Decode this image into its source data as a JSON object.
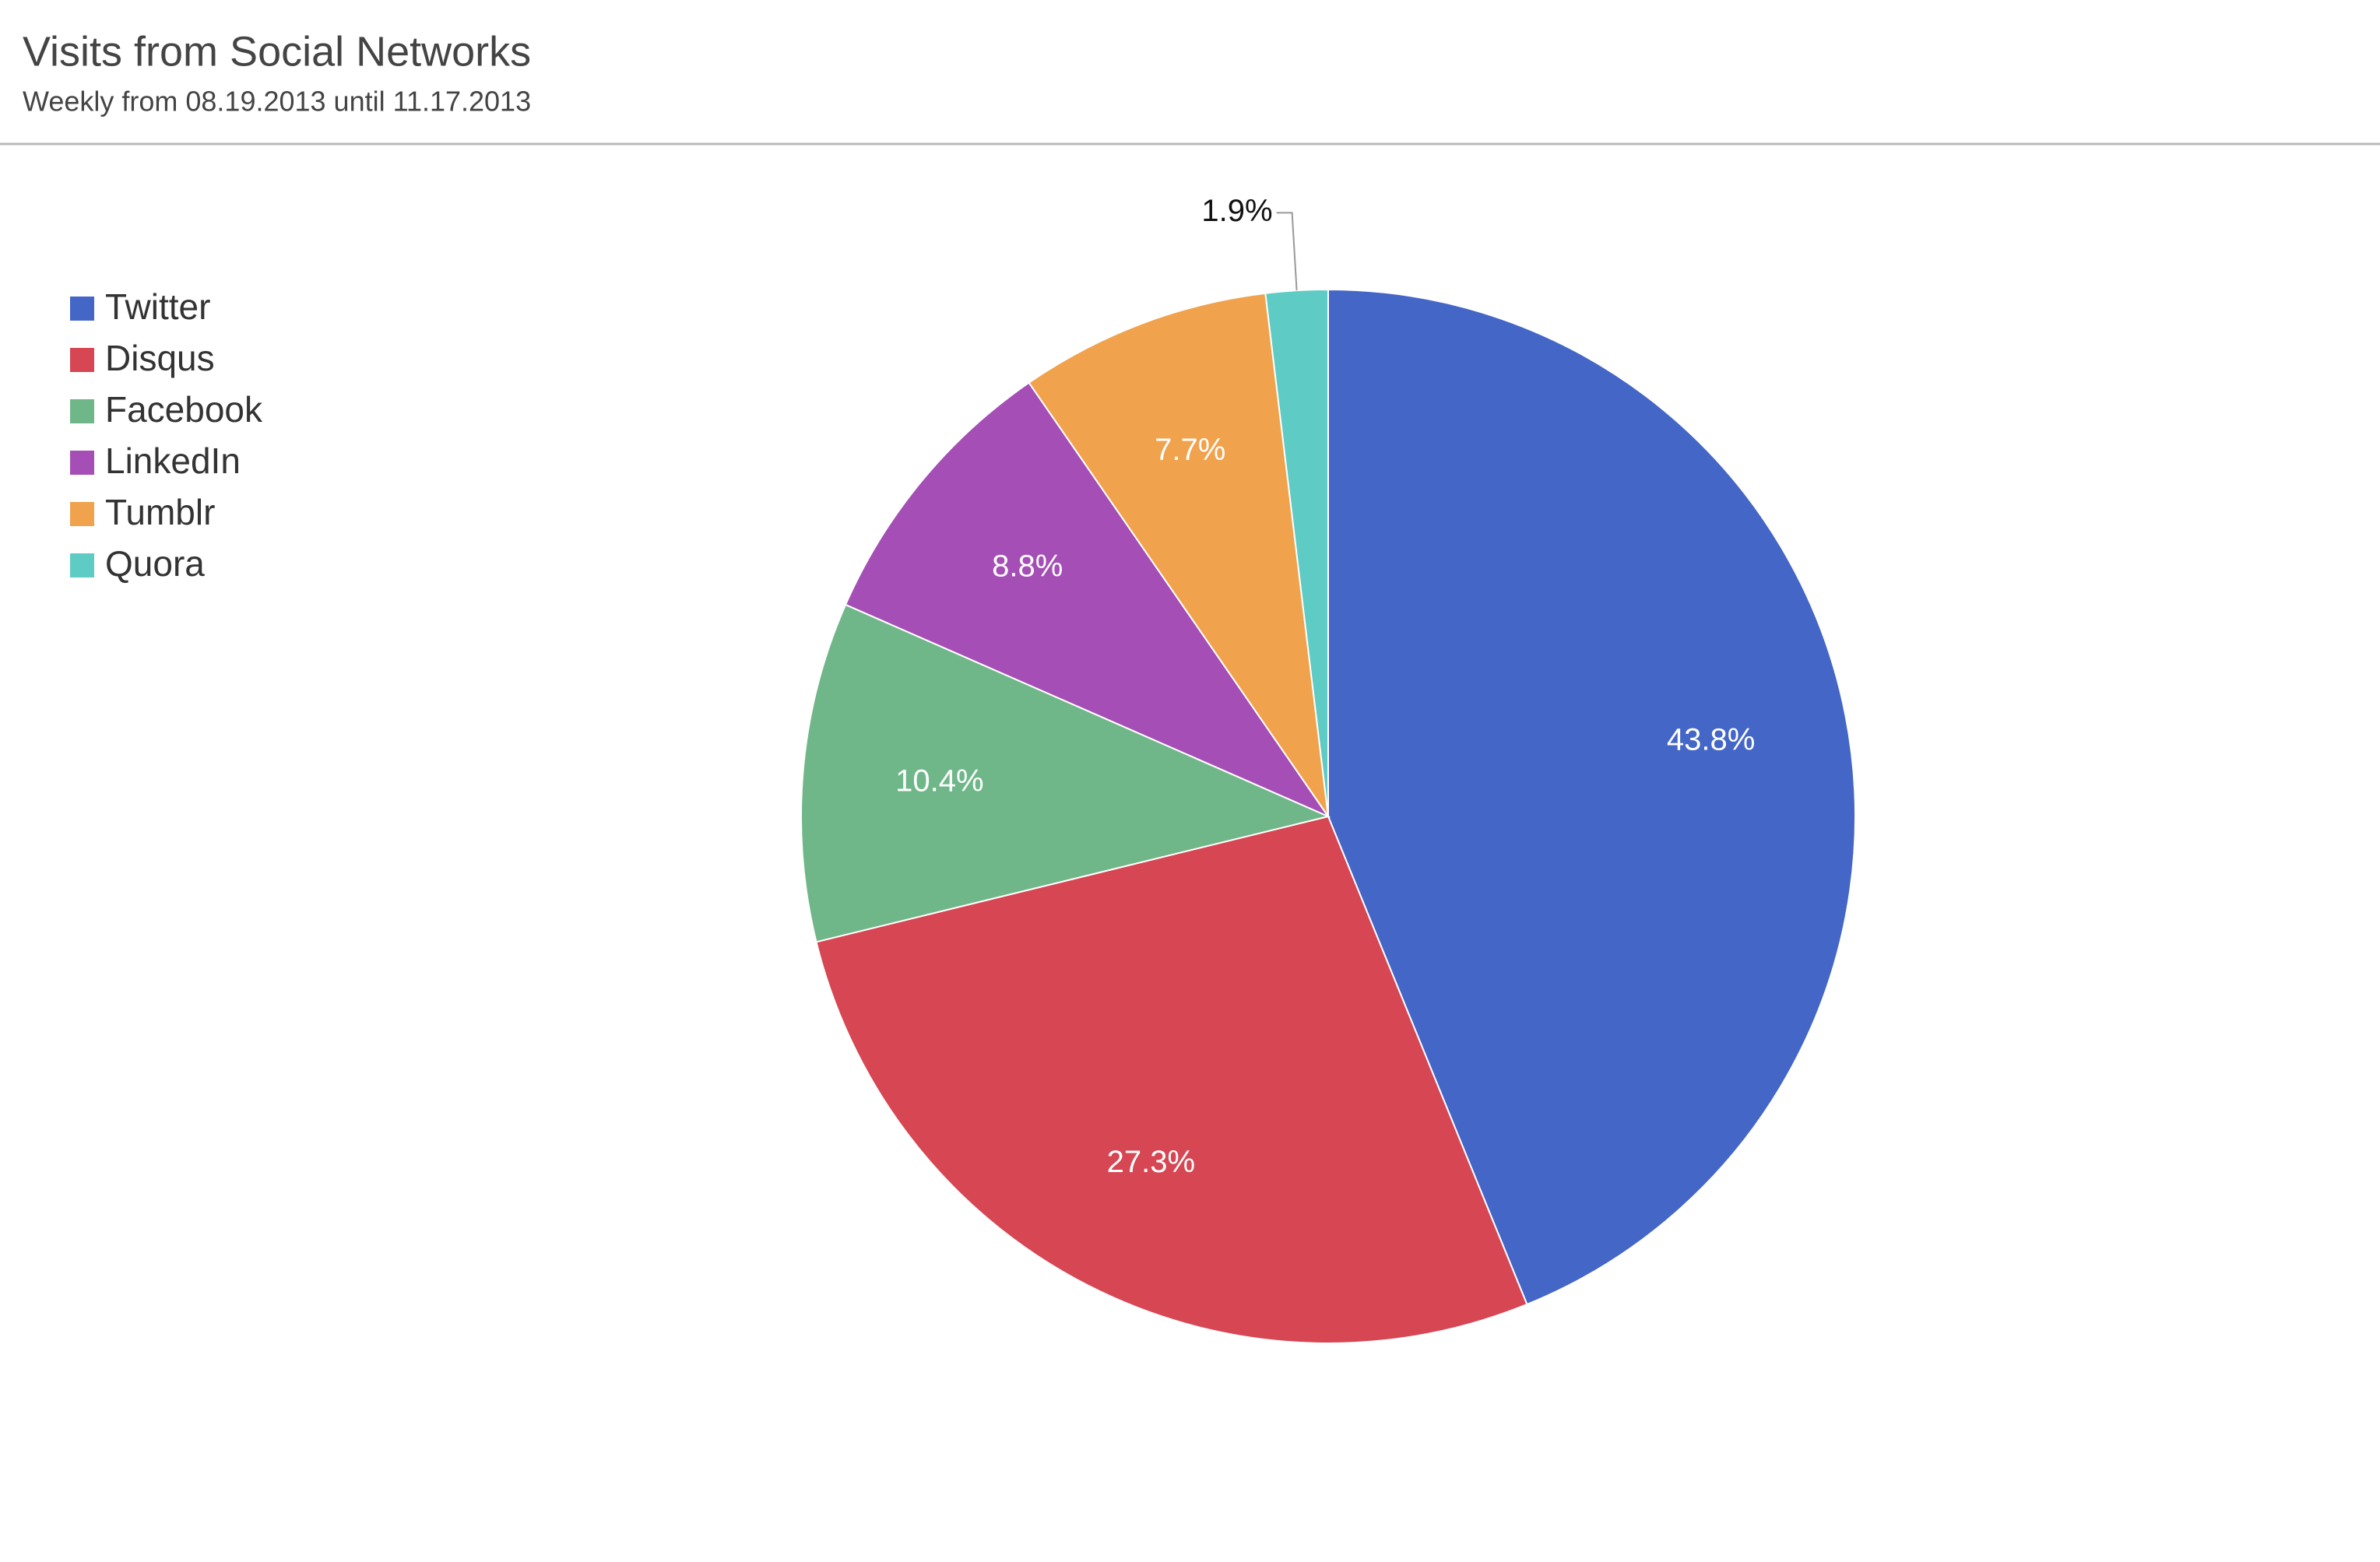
{
  "chart_data": {
    "type": "pie",
    "title": "Visits from Social Networks",
    "subtitle": "Weekly from 08.19.2013 until 11.17.2013",
    "categories": [
      "Twitter",
      "Disqus",
      "Facebook",
      "LinkedIn",
      "Tumblr",
      "Quora"
    ],
    "values": [
      43.8,
      27.3,
      10.4,
      8.8,
      7.7,
      1.9
    ],
    "value_labels": [
      "43.8%",
      "27.3%",
      "10.4%",
      "8.8%",
      "7.7%",
      "1.9%"
    ],
    "colors": [
      "#4466c6",
      "#d64653",
      "#6fb789",
      "#a44eb6",
      "#f0a24c",
      "#5ecbc4"
    ],
    "legend": "top-left"
  }
}
